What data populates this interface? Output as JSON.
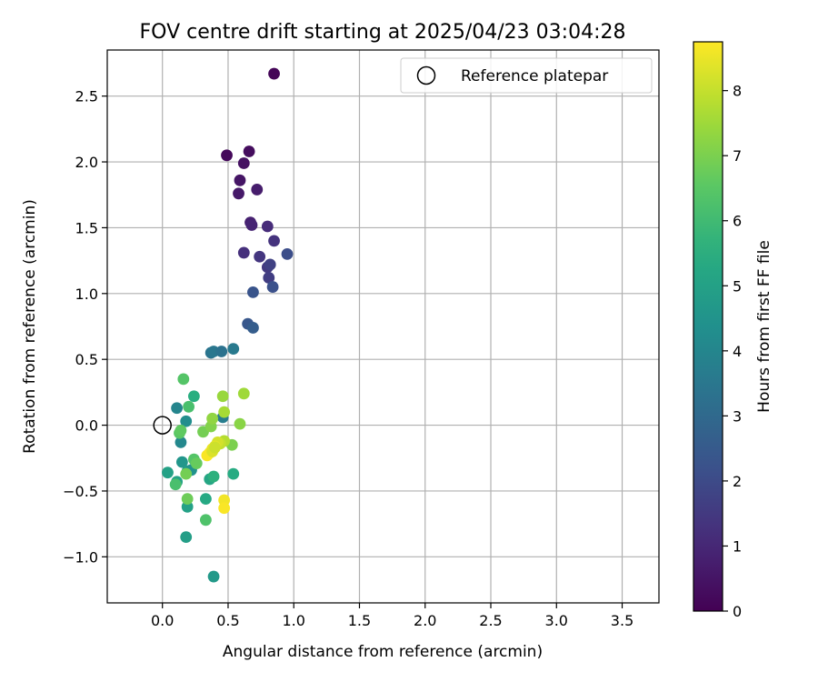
{
  "chart_data": {
    "type": "scatter",
    "title": "FOV centre drift starting at 2025/04/23 03:04:28",
    "xlabel": "Angular distance from reference (arcmin)",
    "ylabel": "Rotation from reference (arcmin)",
    "xlim": [
      -0.42,
      3.78
    ],
    "ylim": [
      -1.35,
      2.85
    ],
    "x_ticks": [
      0.0,
      0.5,
      1.0,
      1.5,
      2.0,
      2.5,
      3.0,
      3.5
    ],
    "x_tick_labels": [
      "0.0",
      "0.5",
      "1.0",
      "1.5",
      "2.0",
      "2.5",
      "3.0",
      "3.5"
    ],
    "y_ticks": [
      -1.0,
      -0.5,
      0.0,
      0.5,
      1.0,
      1.5,
      2.0,
      2.5
    ],
    "y_tick_labels": [
      "−1.0",
      "−0.5",
      "0.0",
      "0.5",
      "1.0",
      "1.5",
      "2.0",
      "2.5"
    ],
    "grid": true,
    "legend": {
      "position": "top-right",
      "label": "Reference platepar"
    },
    "reference_point": {
      "x": 0.0,
      "y": 0.0
    },
    "colorbar": {
      "label": "Hours from first FF file",
      "min": 0,
      "max": 8.75,
      "ticks": [
        0,
        1,
        2,
        3,
        4,
        5,
        6,
        7,
        8
      ],
      "tick_labels": [
        "0",
        "1",
        "2",
        "3",
        "4",
        "5",
        "6",
        "7",
        "8"
      ],
      "colormap": "viridis"
    },
    "points": [
      {
        "x": 0.85,
        "y": 2.67,
        "c": 0.1
      },
      {
        "x": 0.49,
        "y": 2.05,
        "c": 0.2
      },
      {
        "x": 0.66,
        "y": 2.08,
        "c": 0.3
      },
      {
        "x": 0.62,
        "y": 1.99,
        "c": 0.4
      },
      {
        "x": 0.59,
        "y": 1.86,
        "c": 0.5
      },
      {
        "x": 0.58,
        "y": 1.76,
        "c": 0.6
      },
      {
        "x": 0.72,
        "y": 1.79,
        "c": 0.7
      },
      {
        "x": 0.67,
        "y": 1.54,
        "c": 0.8
      },
      {
        "x": 0.68,
        "y": 1.52,
        "c": 0.9
      },
      {
        "x": 0.8,
        "y": 1.51,
        "c": 1.1
      },
      {
        "x": 0.85,
        "y": 1.4,
        "c": 1.3
      },
      {
        "x": 0.62,
        "y": 1.31,
        "c": 1.2
      },
      {
        "x": 0.74,
        "y": 1.28,
        "c": 1.4
      },
      {
        "x": 0.8,
        "y": 1.2,
        "c": 1.5
      },
      {
        "x": 0.82,
        "y": 1.22,
        "c": 1.7
      },
      {
        "x": 0.81,
        "y": 1.12,
        "c": 1.6
      },
      {
        "x": 0.95,
        "y": 1.3,
        "c": 2.1
      },
      {
        "x": 0.84,
        "y": 1.05,
        "c": 2.2
      },
      {
        "x": 0.69,
        "y": 1.01,
        "c": 2.3
      },
      {
        "x": 0.65,
        "y": 0.77,
        "c": 2.4
      },
      {
        "x": 0.69,
        "y": 0.74,
        "c": 2.6
      },
      {
        "x": 0.37,
        "y": 0.55,
        "c": 3.4
      },
      {
        "x": 0.39,
        "y": 0.56,
        "c": 3.5
      },
      {
        "x": 0.45,
        "y": 0.56,
        "c": 3.3
      },
      {
        "x": 0.54,
        "y": 0.58,
        "c": 3.6
      },
      {
        "x": 0.46,
        "y": 0.06,
        "c": 3.7
      },
      {
        "x": 0.11,
        "y": 0.13,
        "c": 4.0
      },
      {
        "x": 0.18,
        "y": 0.03,
        "c": 4.3
      },
      {
        "x": 0.14,
        "y": -0.13,
        "c": 4.1
      },
      {
        "x": 0.15,
        "y": -0.28,
        "c": 4.6
      },
      {
        "x": 0.19,
        "y": -0.35,
        "c": 4.8
      },
      {
        "x": 0.22,
        "y": -0.34,
        "c": 4.5
      },
      {
        "x": 0.04,
        "y": -0.36,
        "c": 5.0
      },
      {
        "x": 0.11,
        "y": -0.43,
        "c": 5.1
      },
      {
        "x": 0.36,
        "y": -0.41,
        "c": 5.2
      },
      {
        "x": 0.39,
        "y": -0.39,
        "c": 5.6
      },
      {
        "x": 0.54,
        "y": -0.37,
        "c": 5.4
      },
      {
        "x": 0.33,
        "y": -0.56,
        "c": 5.3
      },
      {
        "x": 0.19,
        "y": -0.62,
        "c": 5.0
      },
      {
        "x": 0.18,
        "y": -0.85,
        "c": 4.9
      },
      {
        "x": 0.39,
        "y": -1.15,
        "c": 4.7
      },
      {
        "x": 0.24,
        "y": 0.22,
        "c": 5.5
      },
      {
        "x": 0.2,
        "y": 0.14,
        "c": 6.2
      },
      {
        "x": 0.16,
        "y": 0.35,
        "c": 6.4
      },
      {
        "x": 0.13,
        "y": -0.06,
        "c": 6.5
      },
      {
        "x": 0.14,
        "y": -0.04,
        "c": 6.6
      },
      {
        "x": 0.24,
        "y": -0.26,
        "c": 6.4
      },
      {
        "x": 0.26,
        "y": -0.29,
        "c": 6.7
      },
      {
        "x": 0.18,
        "y": -0.37,
        "c": 6.9
      },
      {
        "x": 0.1,
        "y": -0.45,
        "c": 6.2
      },
      {
        "x": 0.19,
        "y": -0.56,
        "c": 6.8
      },
      {
        "x": 0.33,
        "y": -0.72,
        "c": 6.3
      },
      {
        "x": 0.31,
        "y": -0.05,
        "c": 6.9
      },
      {
        "x": 0.37,
        "y": -0.01,
        "c": 7.1
      },
      {
        "x": 0.38,
        "y": 0.05,
        "c": 7.3
      },
      {
        "x": 0.46,
        "y": 0.22,
        "c": 7.4
      },
      {
        "x": 0.62,
        "y": 0.24,
        "c": 7.5
      },
      {
        "x": 0.47,
        "y": 0.1,
        "c": 7.6
      },
      {
        "x": 0.59,
        "y": 0.01,
        "c": 7.2
      },
      {
        "x": 0.53,
        "y": -0.15,
        "c": 7.0
      },
      {
        "x": 0.47,
        "y": -0.12,
        "c": 7.8
      },
      {
        "x": 0.44,
        "y": -0.14,
        "c": 8.0
      },
      {
        "x": 0.42,
        "y": -0.13,
        "c": 8.2
      },
      {
        "x": 0.4,
        "y": -0.16,
        "c": 8.4
      },
      {
        "x": 0.38,
        "y": -0.18,
        "c": 8.5
      },
      {
        "x": 0.36,
        "y": -0.21,
        "c": 8.6
      },
      {
        "x": 0.34,
        "y": -0.23,
        "c": 8.7
      },
      {
        "x": 0.38,
        "y": -0.2,
        "c": 8.3
      },
      {
        "x": 0.4,
        "y": -0.17,
        "c": 8.1
      },
      {
        "x": 0.47,
        "y": -0.57,
        "c": 8.6
      },
      {
        "x": 0.47,
        "y": -0.63,
        "c": 8.7
      }
    ]
  }
}
